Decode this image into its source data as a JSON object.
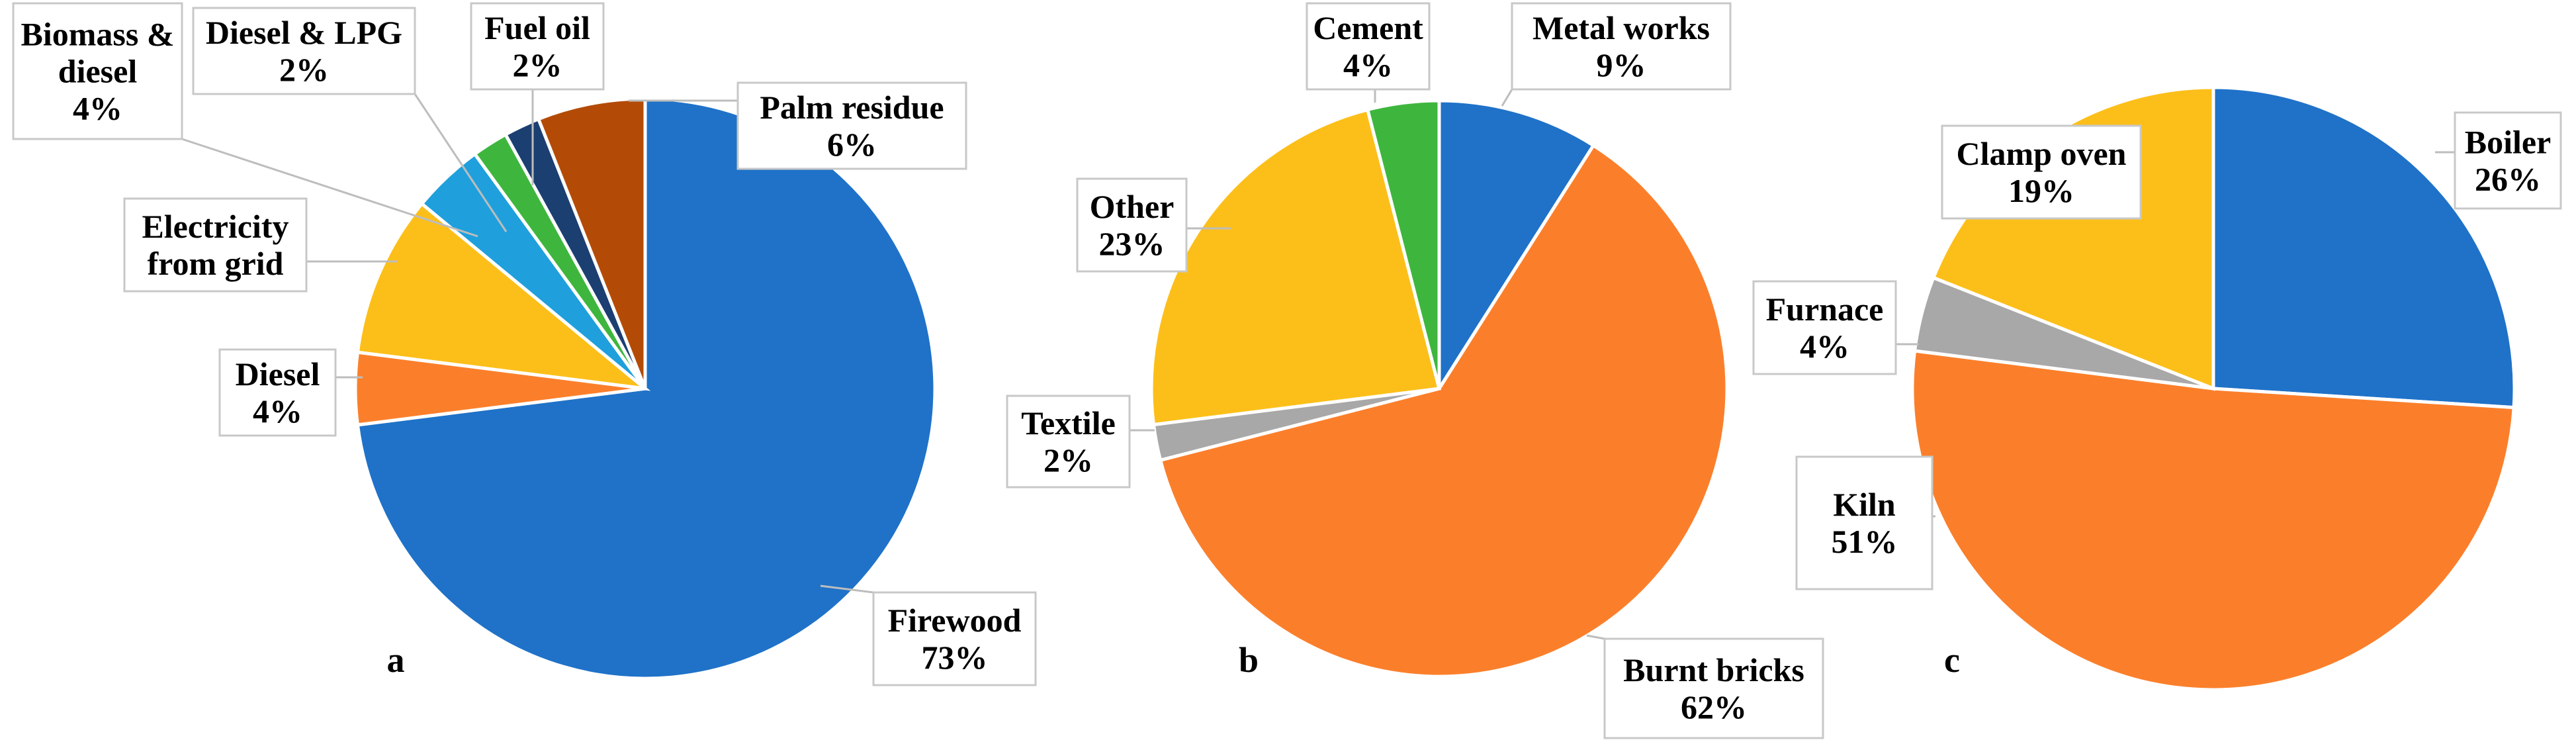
{
  "colors": {
    "blue": "#1f72c8",
    "orange": "#fb7f2b",
    "yellow": "#fcbf1a",
    "light_blue": "#1fa0dc",
    "green": "#3eb63e",
    "dark_blue": "#1c3f72",
    "brown": "#b34b07",
    "gray": "#a8a8a8"
  },
  "chart_data": [
    {
      "type": "pie",
      "panel_letter": "a",
      "title": "",
      "slices": [
        {
          "label": "Firewood",
          "value": 73,
          "percent_label": "73%",
          "color": "#1f72c8"
        },
        {
          "label": "Diesel",
          "value": 4,
          "percent_label": "4%",
          "color": "#fb7f2b"
        },
        {
          "label": "Electricity from grid",
          "value": 9,
          "percent_label": "",
          "color": "#fcbf1a"
        },
        {
          "label": "Biomass & diesel",
          "value": 4,
          "percent_label": "4%",
          "color": "#1fa0dc"
        },
        {
          "label": "Diesel & LPG",
          "value": 2,
          "percent_label": "2%",
          "color": "#3eb63e"
        },
        {
          "label": "Fuel oil",
          "value": 2,
          "percent_label": "2%",
          "color": "#1c3f72"
        },
        {
          "label": "Palm residue",
          "value": 6,
          "percent_label": "6%",
          "color": "#b34b07"
        }
      ]
    },
    {
      "type": "pie",
      "panel_letter": "b",
      "title": "",
      "slices": [
        {
          "label": "Metal works",
          "value": 9,
          "percent_label": "9%",
          "color": "#1f72c8"
        },
        {
          "label": "Burnt bricks",
          "value": 62,
          "percent_label": "62%",
          "color": "#fb7f2b"
        },
        {
          "label": "Textile",
          "value": 2,
          "percent_label": "2%",
          "color": "#a8a8a8"
        },
        {
          "label": "Other",
          "value": 23,
          "percent_label": "23%",
          "color": "#fcbf1a"
        },
        {
          "label": "Cement",
          "value": 4,
          "percent_label": "4%",
          "color": "#3eb63e"
        }
      ]
    },
    {
      "type": "pie",
      "panel_letter": "c",
      "title": "",
      "slices": [
        {
          "label": "Boiler",
          "value": 26,
          "percent_label": "26%",
          "color": "#1f72c8"
        },
        {
          "label": "Kiln",
          "value": 51,
          "percent_label": "51%",
          "color": "#fb7f2b"
        },
        {
          "label": "Furnace",
          "value": 4,
          "percent_label": "4%",
          "color": "#a8a8a8"
        },
        {
          "label": "Clamp oven",
          "value": 19,
          "percent_label": "19%",
          "color": "#fcbf1a"
        }
      ]
    }
  ]
}
